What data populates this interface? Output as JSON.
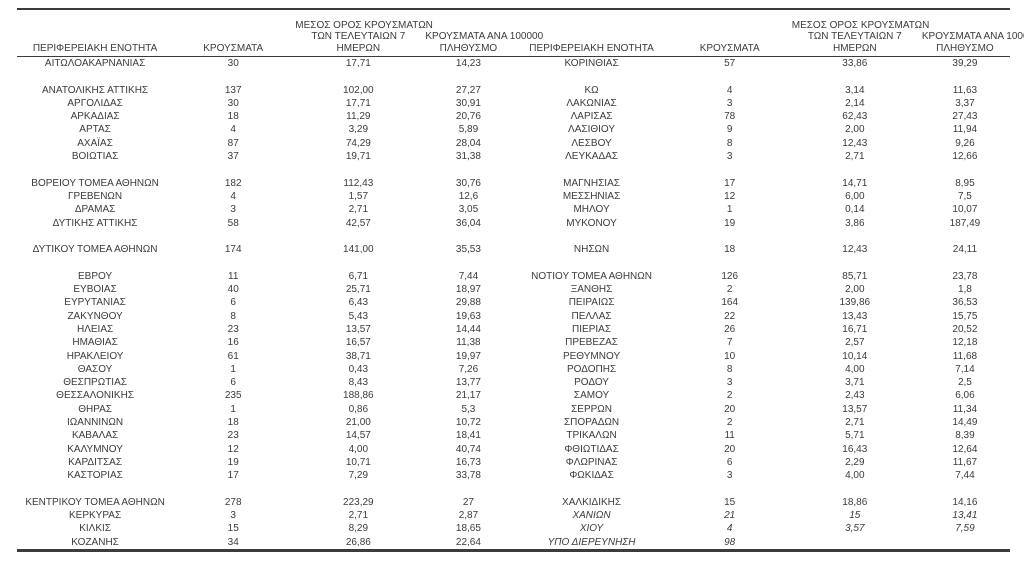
{
  "colors": {
    "text": "#3b3b3b",
    "rule_lines": "#3b3b3b",
    "background": "#ffffff"
  },
  "header": {
    "col_region": "ΠΕΡΙΦΕΡΕΙΑΚΗ ΕΝΟΤΗΤΑ",
    "col_cases": "ΚΡΟΥΣΜΑΤΑ",
    "col_avg7_lines": [
      "ΜΕΣΟΣ ΟΡΟΣ ΚΡΟΥΣΜΑΤΩΝ",
      "ΤΩΝ ΤΕΛΕΥΤΑΙΩΝ 7",
      "ΗΜΕΡΩΝ"
    ],
    "col_per100k_lines": [
      "ΚΡΟΥΣΜΑΤΑ ΑΝΑ 100000",
      "ΠΛΗΘΥΣΜΟ"
    ]
  },
  "left_rows": [
    {
      "region": "ΑΙΤΩΛΟΑΚΑΡΝΑΝΙΑΣ",
      "cases": "30",
      "avg7": "17,71",
      "per100k": "14,23"
    },
    {
      "blank": true
    },
    {
      "region": "ΑΝΑΤΟΛΙΚΗΣ ΑΤΤΙΚΗΣ",
      "cases": "137",
      "avg7": "102,00",
      "per100k": "27,27"
    },
    {
      "region": "ΑΡΓΟΛΙΔΑΣ",
      "cases": "30",
      "avg7": "17,71",
      "per100k": "30,91"
    },
    {
      "region": "ΑΡΚΑΔΙΑΣ",
      "cases": "18",
      "avg7": "11,29",
      "per100k": "20,76"
    },
    {
      "region": "ΑΡΤΑΣ",
      "cases": "4",
      "avg7": "3,29",
      "per100k": "5,89"
    },
    {
      "region": "ΑΧΑΪΑΣ",
      "cases": "87",
      "avg7": "74,29",
      "per100k": "28,04"
    },
    {
      "region": "ΒΟΙΩΤΙΑΣ",
      "cases": "37",
      "avg7": "19,71",
      "per100k": "31,38"
    },
    {
      "blank": true
    },
    {
      "region": "ΒΟΡΕΙΟΥ ΤΟΜΕΑ ΑΘΗΝΩΝ",
      "cases": "182",
      "avg7": "112,43",
      "per100k": "30,76"
    },
    {
      "region": "ΓΡΕΒΕΝΩΝ",
      "cases": "4",
      "avg7": "1,57",
      "per100k": "12,6"
    },
    {
      "region": "ΔΡΑΜΑΣ",
      "cases": "3",
      "avg7": "2,71",
      "per100k": "3,05"
    },
    {
      "region": "ΔΥΤΙΚΗΣ ΑΤΤΙΚΗΣ",
      "cases": "58",
      "avg7": "42,57",
      "per100k": "36,04"
    },
    {
      "blank": true
    },
    {
      "region": "ΔΥΤΙΚΟΥ ΤΟΜΕΑ ΑΘΗΝΩΝ",
      "cases": "174",
      "avg7": "141,00",
      "per100k": "35,53"
    },
    {
      "blank": true
    },
    {
      "region": "ΕΒΡΟΥ",
      "cases": "11",
      "avg7": "6,71",
      "per100k": "7,44"
    },
    {
      "region": "ΕΥΒΟΙΑΣ",
      "cases": "40",
      "avg7": "25,71",
      "per100k": "18,97"
    },
    {
      "region": "ΕΥΡΥΤΑΝΙΑΣ",
      "cases": "6",
      "avg7": "6,43",
      "per100k": "29,88"
    },
    {
      "region": "ΖΑΚΥΝΘΟΥ",
      "cases": "8",
      "avg7": "5,43",
      "per100k": "19,63"
    },
    {
      "region": "ΗΛΕΙΑΣ",
      "cases": "23",
      "avg7": "13,57",
      "per100k": "14,44"
    },
    {
      "region": "ΗΜΑΘΙΑΣ",
      "cases": "16",
      "avg7": "16,57",
      "per100k": "11,38"
    },
    {
      "region": "ΗΡΑΚΛΕΙΟΥ",
      "cases": "61",
      "avg7": "38,71",
      "per100k": "19,97"
    },
    {
      "region": "ΘΑΣΟΥ",
      "cases": "1",
      "avg7": "0,43",
      "per100k": "7,26"
    },
    {
      "region": "ΘΕΣΠΡΩΤΙΑΣ",
      "cases": "6",
      "avg7": "8,43",
      "per100k": "13,77"
    },
    {
      "region": "ΘΕΣΣΑΛΟΝΙΚΗΣ",
      "cases": "235",
      "avg7": "188,86",
      "per100k": "21,17"
    },
    {
      "region": "ΘΗΡΑΣ",
      "cases": "1",
      "avg7": "0,86",
      "per100k": "5,3"
    },
    {
      "region": "ΙΩΑΝΝΙΝΩΝ",
      "cases": "18",
      "avg7": "21,00",
      "per100k": "10,72"
    },
    {
      "region": "ΚΑΒΑΛΑΣ",
      "cases": "23",
      "avg7": "14,57",
      "per100k": "18,41"
    },
    {
      "region": "ΚΑΛΥΜΝΟΥ",
      "cases": "12",
      "avg7": "4,00",
      "per100k": "40,74"
    },
    {
      "region": "ΚΑΡΔΙΤΣΑΣ",
      "cases": "19",
      "avg7": "10,71",
      "per100k": "16,73"
    },
    {
      "region": "ΚΑΣΤΟΡΙΑΣ",
      "cases": "17",
      "avg7": "7,29",
      "per100k": "33,78"
    },
    {
      "blank": true
    },
    {
      "region": "ΚΕΝΤΡΙΚΟΥ ΤΟΜΕΑ ΑΘΗΝΩΝ",
      "cases": "278",
      "avg7": "223,29",
      "per100k": "27"
    },
    {
      "region": "ΚΕΡΚΥΡΑΣ",
      "cases": "3",
      "avg7": "2,71",
      "per100k": "2,87"
    },
    {
      "region": "ΚΙΛΚΙΣ",
      "cases": "15",
      "avg7": "8,29",
      "per100k": "18,65"
    },
    {
      "region": "ΚΟΖΑΝΗΣ",
      "cases": "34",
      "avg7": "26,86",
      "per100k": "22,64"
    }
  ],
  "right_rows": [
    {
      "region": "ΚΟΡΙΝΘΙΑΣ",
      "cases": "57",
      "avg7": "33,86",
      "per100k": "39,29"
    },
    {
      "blank": true
    },
    {
      "region": "ΚΩ",
      "cases": "4",
      "avg7": "3,14",
      "per100k": "11,63"
    },
    {
      "region": "ΛΑΚΩΝΙΑΣ",
      "cases": "3",
      "avg7": "2,14",
      "per100k": "3,37"
    },
    {
      "region": "ΛΑΡΙΣΑΣ",
      "cases": "78",
      "avg7": "62,43",
      "per100k": "27,43"
    },
    {
      "region": "ΛΑΣΙΘΙΟΥ",
      "cases": "9",
      "avg7": "2,00",
      "per100k": "11,94"
    },
    {
      "region": "ΛΕΣΒΟΥ",
      "cases": "8",
      "avg7": "12,43",
      "per100k": "9,26"
    },
    {
      "region": "ΛΕΥΚΑΔΑΣ",
      "cases": "3",
      "avg7": "2,71",
      "per100k": "12,66"
    },
    {
      "blank": true
    },
    {
      "region": "ΜΑΓΝΗΣΙΑΣ",
      "cases": "17",
      "avg7": "14,71",
      "per100k": "8,95"
    },
    {
      "region": "ΜΕΣΣΗΝΙΑΣ",
      "cases": "12",
      "avg7": "6,00",
      "per100k": "7,5"
    },
    {
      "region": "ΜΗΛΟΥ",
      "cases": "1",
      "avg7": "0,14",
      "per100k": "10,07"
    },
    {
      "region": "ΜΥΚΟΝΟΥ",
      "cases": "19",
      "avg7": "3,86",
      "per100k": "187,49"
    },
    {
      "blank": true
    },
    {
      "region": "ΝΗΣΩΝ",
      "cases": "18",
      "avg7": "12,43",
      "per100k": "24,11"
    },
    {
      "blank": true
    },
    {
      "region": "ΝΟΤΙΟΥ ΤΟΜΕΑ ΑΘΗΝΩΝ",
      "cases": "126",
      "avg7": "85,71",
      "per100k": "23,78"
    },
    {
      "region": "ΞΑΝΘΗΣ",
      "cases": "2",
      "avg7": "2,00",
      "per100k": "1,8"
    },
    {
      "region": "ΠΕΙΡΑΙΩΣ",
      "cases": "164",
      "avg7": "139,86",
      "per100k": "36,53"
    },
    {
      "region": "ΠΕΛΛΑΣ",
      "cases": "22",
      "avg7": "13,43",
      "per100k": "15,75"
    },
    {
      "region": "ΠΙΕΡΙΑΣ",
      "cases": "26",
      "avg7": "16,71",
      "per100k": "20,52"
    },
    {
      "region": "ΠΡΕΒΕΖΑΣ",
      "cases": "7",
      "avg7": "2,57",
      "per100k": "12,18"
    },
    {
      "region": "ΡΕΘΥΜΝΟΥ",
      "cases": "10",
      "avg7": "10,14",
      "per100k": "11,68"
    },
    {
      "region": "ΡΟΔΟΠΗΣ",
      "cases": "8",
      "avg7": "4,00",
      "per100k": "7,14"
    },
    {
      "region": "ΡΟΔΟΥ",
      "cases": "3",
      "avg7": "3,71",
      "per100k": "2,5"
    },
    {
      "region": "ΣΑΜΟΥ",
      "cases": "2",
      "avg7": "2,43",
      "per100k": "6,06"
    },
    {
      "region": "ΣΕΡΡΩΝ",
      "cases": "20",
      "avg7": "13,57",
      "per100k": "11,34"
    },
    {
      "region": "ΣΠΟΡΑΔΩΝ",
      "cases": "2",
      "avg7": "2,71",
      "per100k": "14,49"
    },
    {
      "region": "ΤΡΙΚΑΛΩΝ",
      "cases": "11",
      "avg7": "5,71",
      "per100k": "8,39"
    },
    {
      "region": "ΦΘΙΩΤΙΔΑΣ",
      "cases": "20",
      "avg7": "16,43",
      "per100k": "12,64"
    },
    {
      "region": "ΦΛΩΡΙΝΑΣ",
      "cases": "6",
      "avg7": "2,29",
      "per100k": "11,67"
    },
    {
      "region": "ΦΩΚΙΔΑΣ",
      "cases": "3",
      "avg7": "4,00",
      "per100k": "7,44"
    },
    {
      "blank": true
    },
    {
      "region": "ΧΑΛΚΙΔΙΚΗΣ",
      "cases": "15",
      "avg7": "18,86",
      "per100k": "14,16"
    },
    {
      "region": "ΧΑΝΙΩΝ",
      "cases": "21",
      "avg7": "15",
      "per100k": "13,41",
      "italic": true
    },
    {
      "region": "ΧΙΟΥ",
      "cases": "4",
      "avg7": "3,57",
      "per100k": "7,59",
      "italic": true
    },
    {
      "region": "ΥΠΟ ΔΙΕΡΕΥΝΗΣΗ",
      "cases": "98",
      "avg7": "",
      "per100k": "",
      "italic": true
    }
  ]
}
